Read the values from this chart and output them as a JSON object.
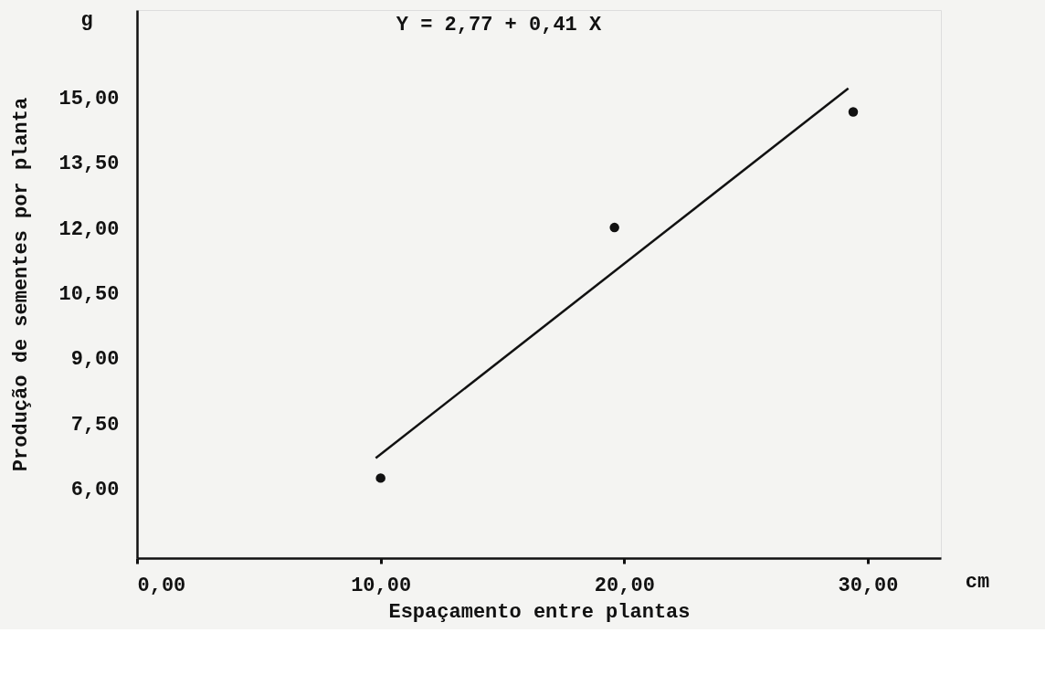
{
  "chart_data": {
    "type": "scatter",
    "xlabel": "Espaçamento entre plantas",
    "ylabel": "Produção de sementes por planta",
    "annotations": [
      "Y = 2,77 + 0,41 X",
      "g",
      "cm"
    ],
    "series": [
      {
        "color": "#111111",
        "marker": "circle",
        "x": [
          10,
          19.6,
          29.4
        ],
        "values": [
          6.24,
          12.0,
          14.66
        ]
      },
      {
        "type": "line",
        "color": "#111111",
        "marker": "none",
        "line_style": "solid",
        "x": [
          9.8,
          29.2
        ],
        "values": [
          6.7,
          15.2
        ]
      }
    ],
    "xlim": [
      0,
      33
    ],
    "ylim": [
      4.4,
      17
    ],
    "xticks": [
      {
        "value": 0,
        "label": "0,00"
      },
      {
        "value": 10,
        "label": "10,00"
      },
      {
        "value": 20,
        "label": "20,00"
      },
      {
        "value": 30,
        "label": "30,00"
      }
    ],
    "yticks": [
      {
        "value": 6,
        "label": "6,00"
      },
      {
        "value": 7.5,
        "label": "7,50"
      },
      {
        "value": 9,
        "label": "9,00"
      },
      {
        "value": 10.5,
        "label": "10,50"
      },
      {
        "value": 12,
        "label": "12,00"
      },
      {
        "value": 13.5,
        "label": "13,50"
      },
      {
        "value": 15,
        "label": "15,00"
      }
    ],
    "grid": false
  }
}
